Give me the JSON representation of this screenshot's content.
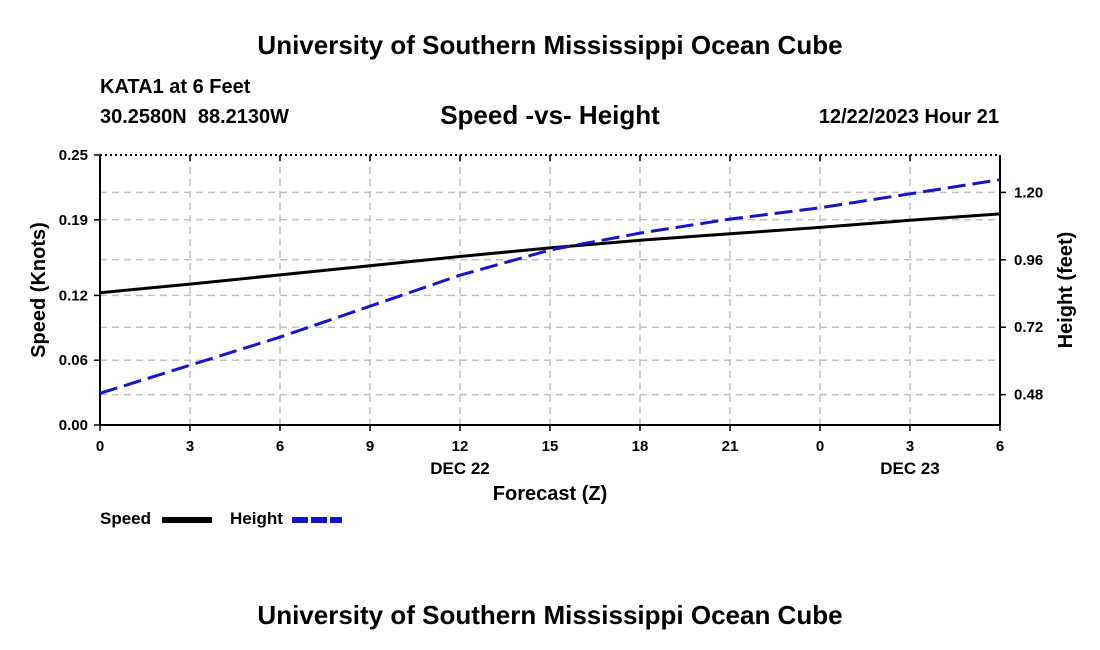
{
  "header": {
    "title": "University of Southern Mississippi Ocean Cube",
    "station": "KATA1 at 6 Feet",
    "coords": "30.2580N  88.2130W",
    "datetime": "12/22/2023 Hour 21"
  },
  "footer": {
    "title": "University of Southern Mississippi Ocean Cube"
  },
  "legend": {
    "speed_label": "Speed",
    "height_label": "Height"
  },
  "colors": {
    "speed": "#000000",
    "height": "#1515c8",
    "grid": "#c0c0c0"
  },
  "chart_data": {
    "type": "line",
    "title": "Speed -vs- Height",
    "xlabel": "Forecast (Z)",
    "ylabel": "Speed (Knots)",
    "y2label": "Height (feet)",
    "x": [
      0,
      3,
      6,
      9,
      12,
      15,
      18,
      21,
      24,
      27,
      30
    ],
    "x_tick_labels": [
      "0",
      "3",
      "6",
      "9",
      "12",
      "15",
      "18",
      "21",
      "0",
      "3",
      "6"
    ],
    "date_labels": [
      {
        "label": "DEC 22",
        "x": 12
      },
      {
        "label": "DEC 23",
        "x": 27
      }
    ],
    "xlim": [
      0,
      30
    ],
    "ylim": [
      0,
      0.25
    ],
    "y_ticks": [
      0.0,
      0.06,
      0.12,
      0.19,
      0.25
    ],
    "y_tick_labels": [
      "0.00",
      "0.06",
      "0.12",
      "0.19",
      "0.25"
    ],
    "y2lim": [
      0.372,
      1.333
    ],
    "y2_ticks": [
      0.48,
      0.72,
      0.96,
      1.2
    ],
    "y2_tick_labels": [
      "0.48",
      "0.72",
      "0.96",
      "1.20"
    ],
    "grid": true,
    "series": [
      {
        "name": "Speed",
        "axis": "left",
        "style": "solid",
        "values": [
          0.1225,
          0.1305,
          0.139,
          0.1475,
          0.156,
          0.164,
          0.171,
          0.177,
          0.183,
          0.1895,
          0.1955
        ]
      },
      {
        "name": "Height",
        "axis": "right",
        "style": "dashed",
        "values": [
          0.485,
          0.585,
          0.685,
          0.795,
          0.905,
          0.995,
          1.055,
          1.105,
          1.145,
          1.195,
          1.245
        ]
      }
    ]
  }
}
